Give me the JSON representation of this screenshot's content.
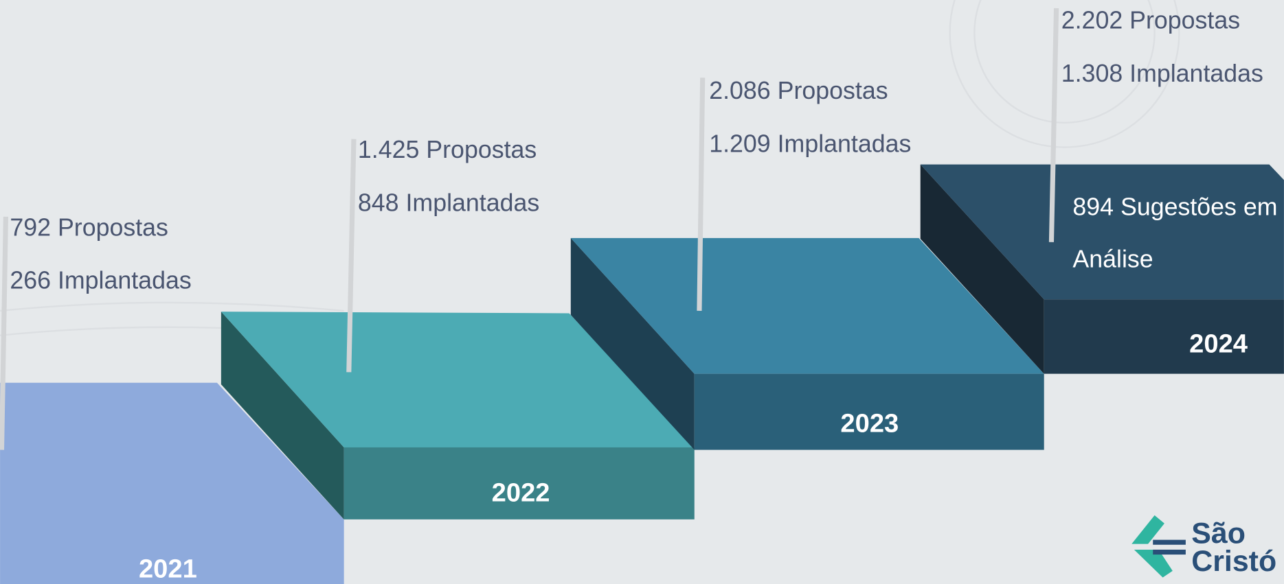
{
  "steps": [
    {
      "year": "2021",
      "lines": [
        "792 Propostas",
        "266 Implantadas"
      ]
    },
    {
      "year": "2022",
      "lines": [
        "1.425 Propostas",
        "848 Implantadas"
      ]
    },
    {
      "year": "2023",
      "lines": [
        "2.086 Propostas",
        "1.209 Implantadas"
      ]
    },
    {
      "year": "2024",
      "lines": [
        "2.202 Propostas",
        "1.308 Implantadas"
      ],
      "note": [
        "894 Sugestões em",
        "Análise"
      ]
    }
  ],
  "logo": {
    "lines": [
      "São",
      "Cristó"
    ]
  }
}
